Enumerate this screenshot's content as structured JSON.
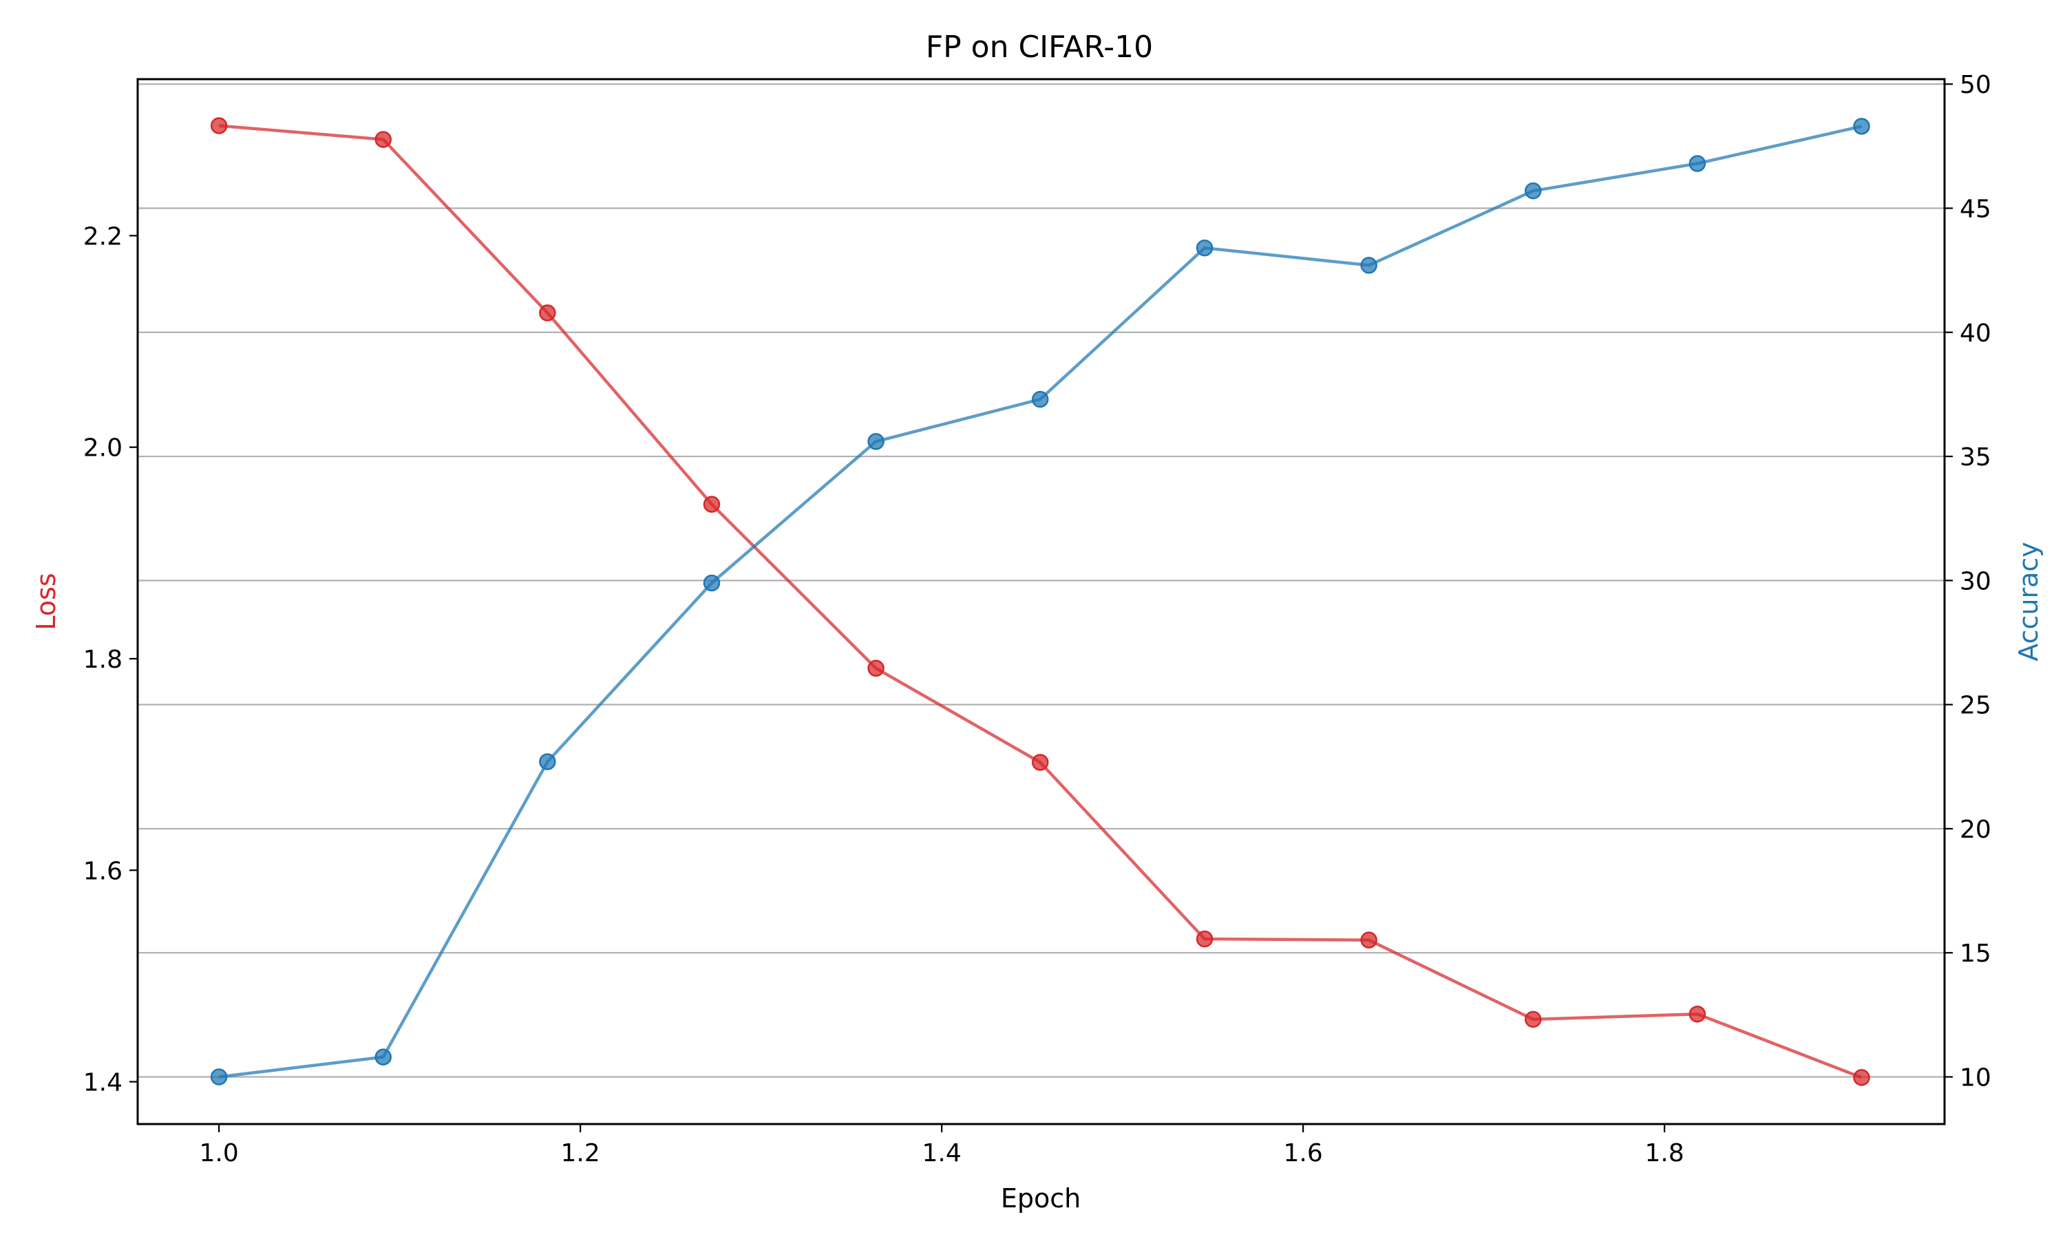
{
  "chart_data": {
    "type": "line",
    "title": "FP on CIFAR-10",
    "xlabel": "Epoch",
    "ylabel_left": "Loss",
    "ylabel_right": "Accuracy",
    "x": [
      1.0,
      1.0909,
      1.1818,
      1.2727,
      1.3636,
      1.4545,
      1.5455,
      1.6364,
      1.7273,
      1.8182,
      1.9091
    ],
    "series": [
      {
        "axis": "left",
        "color": "#d62728",
        "values": [
          2.304,
          2.291,
          2.127,
          1.946,
          1.791,
          1.702,
          1.535,
          1.534,
          1.459,
          1.464,
          1.404
        ]
      },
      {
        "axis": "right",
        "color": "#1f77b4",
        "values": [
          10.0,
          10.8,
          22.7,
          29.9,
          35.6,
          37.3,
          43.4,
          42.7,
          45.7,
          46.8,
          48.3
        ]
      }
    ],
    "xlim": [
      0.955,
      1.955
    ],
    "ylim_left": [
      1.36,
      2.348
    ],
    "ylim_right": [
      8.1,
      50.2
    ],
    "xticks": [
      1.0,
      1.2,
      1.4,
      1.6,
      1.8
    ],
    "xtick_labels": [
      "1.0",
      "1.2",
      "1.4",
      "1.6",
      "1.8"
    ],
    "yticks_left": [
      1.4,
      1.6,
      1.8,
      2.0,
      2.2
    ],
    "ytick_labels_left": [
      "1.4",
      "1.6",
      "1.8",
      "2.0",
      "2.2"
    ],
    "yticks_right": [
      10,
      15,
      20,
      25,
      30,
      35,
      40,
      45,
      50
    ],
    "ytick_labels_right": [
      "10",
      "15",
      "20",
      "25",
      "30",
      "35",
      "40",
      "45",
      "50"
    ],
    "grid": "horizontal, right axis",
    "legend": "none"
  }
}
